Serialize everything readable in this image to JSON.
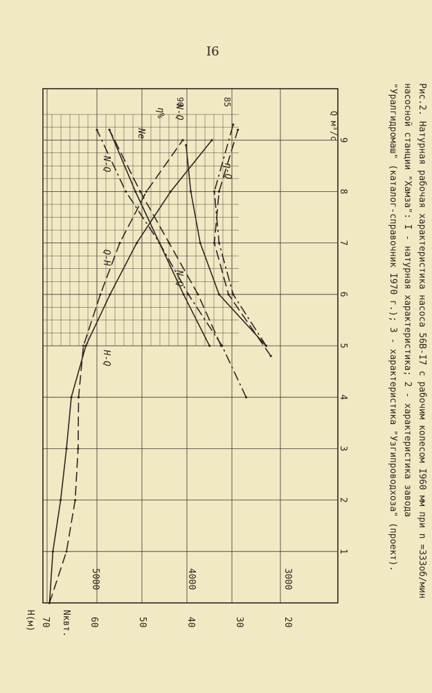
{
  "page": {
    "number": "I6"
  },
  "caption": {
    "line1": "Рис.2. Натурная рабочая характеристика насоса 56В-I7 с рабочим колесом I960 мм при n =333об/мин",
    "line2": "насосной станции \"Хамза\": I - натурная характеристика; 2 - характеристика завода",
    "line3": "\"Уралгидромаш\" (каталог-справочник I970 г.); 3 - характеристика \"Узгипроводхоза\" (проект)."
  },
  "chart_data": {
    "type": "line",
    "x_label": "Q м³/с",
    "x_ticks": [
      "1",
      "2",
      "3",
      "4",
      "5",
      "6",
      "7",
      "8",
      "9"
    ],
    "xlim": [
      0,
      10
    ],
    "axes": {
      "H": {
        "label": "H(м)",
        "ticks": [
          "70",
          "60",
          "50",
          "40",
          "30",
          "20"
        ],
        "range": [
          15,
          70
        ]
      },
      "N": {
        "label": "Nквт.",
        "ticks": [
          "5000",
          "4000",
          "3000"
        ],
        "range": [
          2750,
          5000
        ]
      },
      "eta": {
        "label": "η%",
        "ticks": [
          "90",
          "85"
        ],
        "range": [
          80,
          92
        ]
      }
    },
    "grid": "dense grid in region Q 5–9.5",
    "curve_labels": [
      "H-Q",
      "Q-H",
      "N-Q",
      "N-Q",
      "Ne",
      "η-Q",
      "η%",
      "N-Q"
    ],
    "series": [
      {
        "id": "HQ-1",
        "label": "H-Q",
        "style": "solid",
        "x": [
          0,
          1,
          2,
          3,
          4,
          5,
          6,
          7,
          8,
          9
        ],
        "y": [
          69.5,
          68.8,
          67.2,
          66.0,
          65.0,
          62.0,
          57.0,
          51.5,
          44.5,
          36.0
        ]
      },
      {
        "id": "HQ-2",
        "label": "Q-H",
        "style": "dash",
        "x": [
          0,
          1,
          2,
          3,
          4,
          5,
          6,
          7,
          8,
          9
        ],
        "y": [
          69.5,
          66.0,
          64.2,
          63.6,
          63.5,
          62.5,
          59.0,
          55.0,
          49.5,
          42.0
        ]
      },
      {
        "id": "NQ-1",
        "label": "N-Q",
        "style": "solid",
        "x": [
          5,
          6,
          7,
          8,
          9.2
        ],
        "y": [
          3830,
          4100,
          4350,
          4600,
          4870
        ]
      },
      {
        "id": "NQ-2",
        "label": "N-Q",
        "style": "dash",
        "x": [
          5,
          6,
          7,
          8,
          9.2
        ],
        "y": [
          3710,
          3950,
          4250,
          4550,
          4870
        ]
      },
      {
        "id": "NQ-3",
        "label": "N-Q",
        "style": "dash-dot",
        "x": [
          4,
          5,
          6,
          7,
          8,
          9.2
        ],
        "y": [
          3450,
          3700,
          4050,
          4350,
          4700,
          5000
        ]
      },
      {
        "id": "eta-1",
        "label": "η-Q",
        "style": "solid",
        "x": [
          5,
          6,
          7,
          8,
          8.9
        ],
        "y": [
          81.0,
          86.0,
          88.0,
          89.0,
          89.5
        ]
      },
      {
        "id": "eta-2",
        "label": "η-Q",
        "style": "dash",
        "x": [
          4.8,
          6,
          7,
          8,
          9.2
        ],
        "y": [
          80.5,
          85.0,
          86.5,
          86.0,
          84.0
        ]
      },
      {
        "id": "eta-3",
        "label": "η-Q",
        "style": "dash-dot",
        "x": [
          5.0,
          6,
          7,
          8,
          9.3
        ],
        "y": [
          81.0,
          84.5,
          86.0,
          86.5,
          84.5
        ]
      }
    ]
  }
}
